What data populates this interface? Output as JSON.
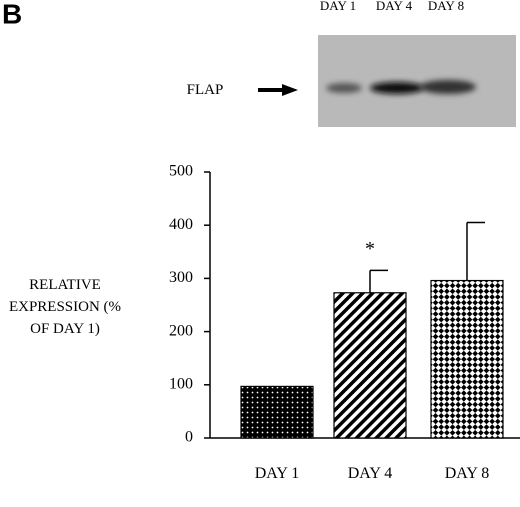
{
  "panel_label": "B",
  "blot": {
    "lanes": [
      "DAY 1",
      "DAY 4",
      "DAY 8"
    ],
    "label": "FLAP"
  },
  "chart_data": {
    "type": "bar",
    "y_label": "RELATIVE EXPRESSION (% OF DAY 1)",
    "categories": [
      "DAY 1",
      "DAY 4",
      "DAY 8"
    ],
    "values": [
      97,
      273,
      296
    ],
    "errors": [
      0,
      42,
      109
    ],
    "value_annotations": [
      null,
      "*",
      null
    ],
    "patterns": [
      "dots",
      "stripes",
      "checker"
    ],
    "color": "#000000",
    "ylim": [
      0,
      500
    ],
    "yticks": [
      0,
      100,
      200,
      300,
      400,
      500
    ],
    "grid": false
  }
}
